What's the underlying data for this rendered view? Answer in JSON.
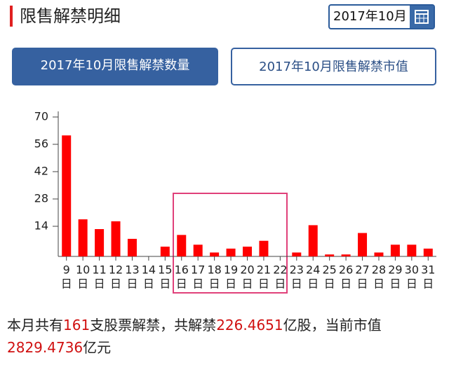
{
  "header": {
    "title": "限售解禁明细",
    "date": "2017年10月"
  },
  "tabs": [
    "2017年10月限售解禁数量",
    "2017年10月限售解禁市值"
  ],
  "chart_data": {
    "type": "bar",
    "categories": [
      "9",
      "10",
      "11",
      "12",
      "13",
      "14",
      "15",
      "16",
      "17",
      "18",
      "19",
      "20",
      "21",
      "22",
      "23",
      "24",
      "25",
      "26",
      "27",
      "28",
      "29",
      "30",
      "31"
    ],
    "category_unit": "日",
    "values": [
      62,
      19,
      14,
      18,
      9,
      0,
      5,
      11,
      6,
      2,
      4,
      5,
      8,
      0,
      2,
      16,
      1,
      1,
      12,
      2,
      6,
      6,
      4
    ],
    "color": "#ff0000",
    "ylim": [
      0,
      70
    ],
    "yticks": [
      14,
      28,
      42,
      56,
      70
    ],
    "grid": false
  },
  "summary": [
    "本月共有",
    "161",
    "支股票解禁，共解禁",
    "226.4651",
    "亿股，当前市值",
    "2829.4736",
    "亿元"
  ]
}
